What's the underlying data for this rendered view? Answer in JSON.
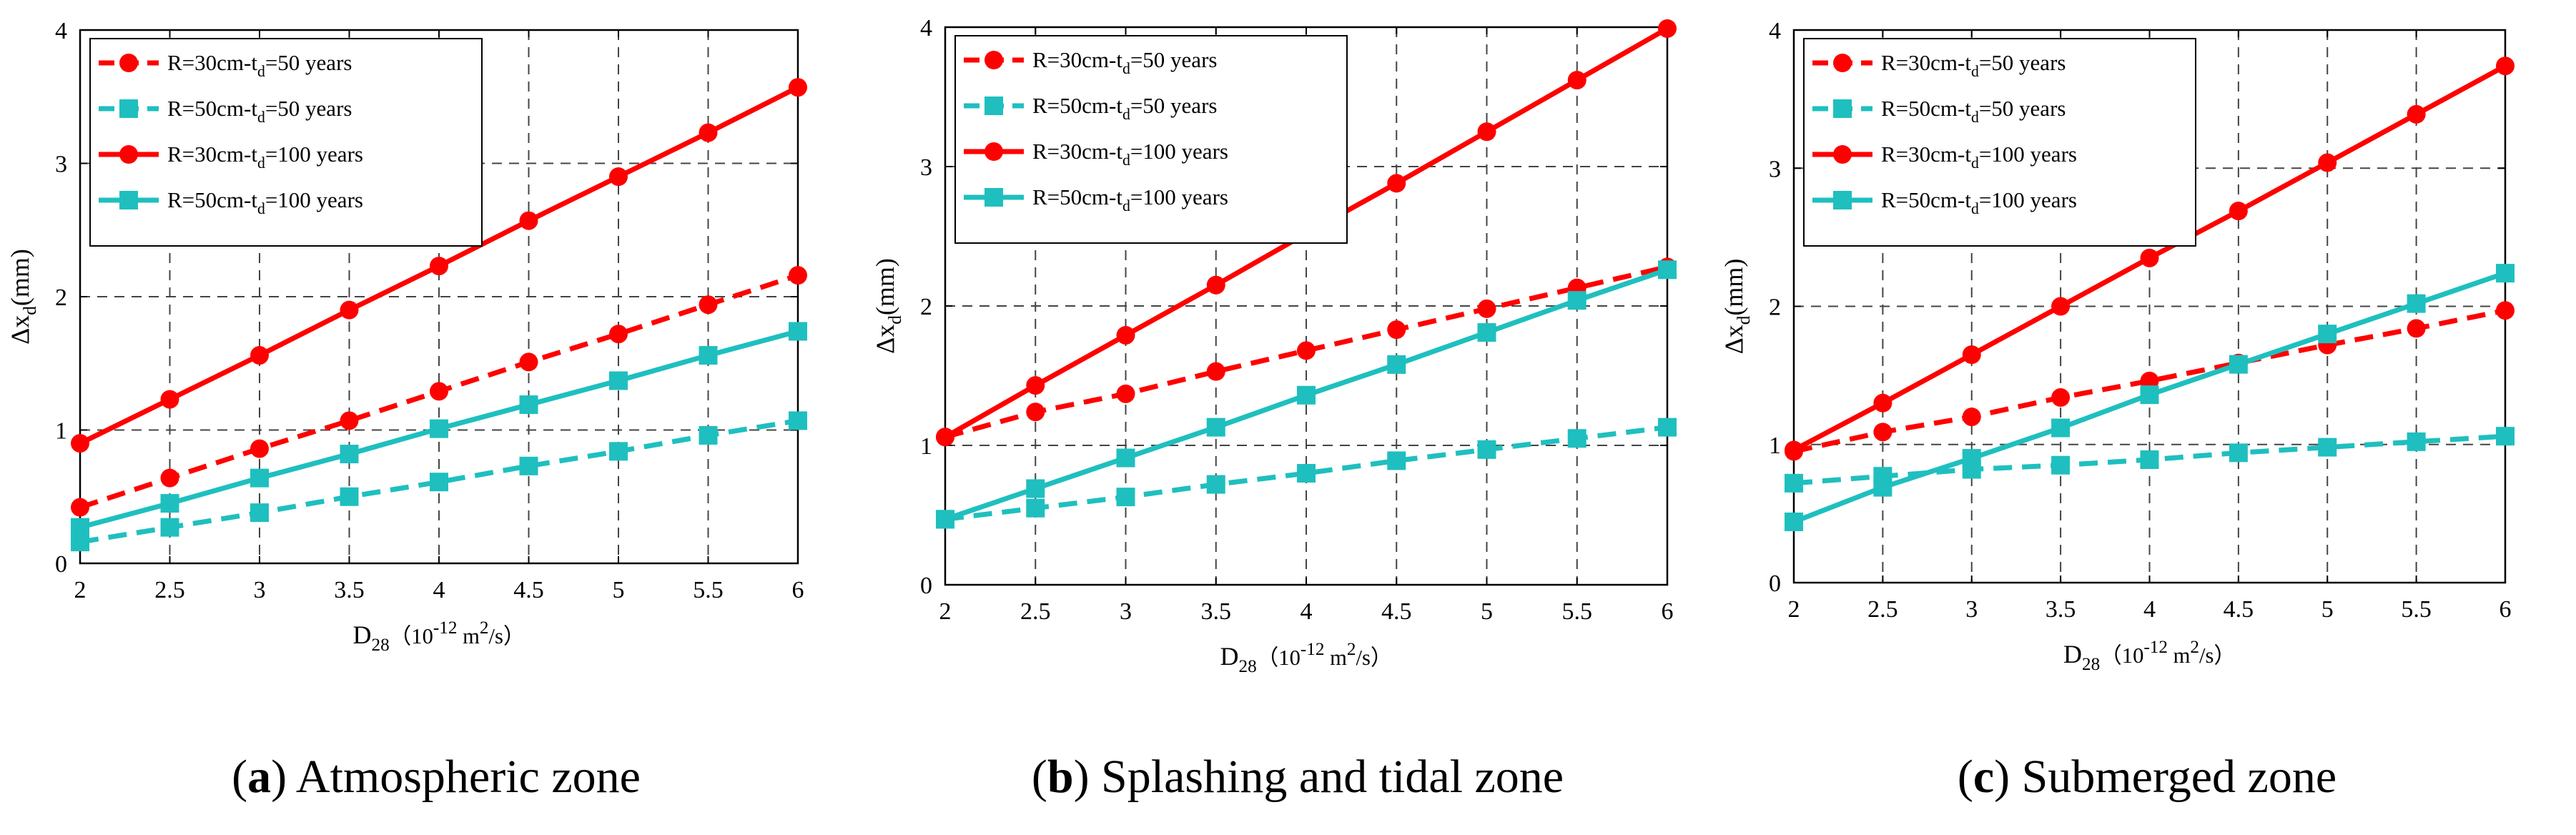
{
  "figure": {
    "colors": {
      "red": "#ff0000",
      "cyan": "#1fbfbf",
      "grid": "#444444",
      "axis": "#000000"
    }
  },
  "chart_data": [
    {
      "type": "line",
      "caption_label": "a",
      "caption_text": "Atmospheric zone",
      "xlabel": {
        "main": "D",
        "sub": "28",
        "unit_open": "（10",
        "unit_exp": "-12",
        "unit_mid": " m",
        "unit_sq": "2",
        "unit_close": "/s）"
      },
      "ylabel": {
        "main": "Δx",
        "sub": "d",
        "unit": "(mm)"
      },
      "xlim": [
        2,
        6
      ],
      "ylim": [
        0,
        4
      ],
      "x_ticks": [
        "2",
        "2.5",
        "3",
        "3.5",
        "4",
        "4.5",
        "5",
        "5.5",
        "6"
      ],
      "y_ticks": [
        "0",
        "1",
        "2",
        "3",
        "4"
      ],
      "grid": true,
      "legend_position": "top-left",
      "x": [
        2,
        2.5,
        3,
        3.5,
        4,
        4.5,
        5,
        5.5,
        6
      ],
      "series": [
        {
          "name": "R=30cm-td=50 years",
          "label_pre": "R=30cm-t",
          "label_sub": "d",
          "label_post": "=50 years",
          "color": "#ff0000",
          "marker": "circle",
          "dash": true,
          "values": [
            0.42,
            0.64,
            0.86,
            1.07,
            1.29,
            1.51,
            1.72,
            1.94,
            2.16
          ]
        },
        {
          "name": "R=50cm-td=50 years",
          "label_pre": "R=50cm-t",
          "label_sub": "d",
          "label_post": "=50 years",
          "color": "#1fbfbf",
          "marker": "square",
          "dash": true,
          "values": [
            0.16,
            0.27,
            0.38,
            0.5,
            0.61,
            0.73,
            0.84,
            0.96,
            1.07
          ]
        },
        {
          "name": "R=30cm-td=100 years",
          "label_pre": "R=30cm-t",
          "label_sub": "d",
          "label_post": "=100 years",
          "color": "#ff0000",
          "marker": "circle",
          "dash": false,
          "values": [
            0.9,
            1.23,
            1.56,
            1.9,
            2.23,
            2.57,
            2.9,
            3.23,
            3.57
          ]
        },
        {
          "name": "R=50cm-td=100 years",
          "label_pre": "R=50cm-t",
          "label_sub": "d",
          "label_post": "=100 years",
          "color": "#1fbfbf",
          "marker": "square",
          "dash": false,
          "values": [
            0.27,
            0.45,
            0.64,
            0.82,
            1.01,
            1.19,
            1.37,
            1.56,
            1.74
          ]
        }
      ]
    },
    {
      "type": "line",
      "caption_label": "b",
      "caption_text": "Splashing and tidal zone",
      "xlabel": {
        "main": "D",
        "sub": "28",
        "unit_open": "（10",
        "unit_exp": "-12",
        "unit_mid": " m",
        "unit_sq": "2",
        "unit_close": "/s）"
      },
      "ylabel": {
        "main": "Δx",
        "sub": "d",
        "unit": "(mm)"
      },
      "xlim": [
        2,
        6
      ],
      "ylim": [
        0,
        4
      ],
      "x_ticks": [
        "2",
        "2.5",
        "3",
        "3.5",
        "4",
        "4.5",
        "5",
        "5.5",
        "6"
      ],
      "y_ticks": [
        "0",
        "1",
        "2",
        "3",
        "4"
      ],
      "grid": true,
      "legend_position": "top-left",
      "x": [
        2,
        2.5,
        3,
        3.5,
        4,
        4.5,
        5,
        5.5,
        6
      ],
      "series": [
        {
          "name": "R=30cm-td=50 years",
          "label_pre": "R=30cm-t",
          "label_sub": "d",
          "label_post": "=50 years",
          "color": "#ff0000",
          "marker": "circle",
          "dash": true,
          "values": [
            1.06,
            1.24,
            1.37,
            1.53,
            1.68,
            1.83,
            1.98,
            2.13,
            2.28
          ]
        },
        {
          "name": "R=50cm-td=50 years",
          "label_pre": "R=50cm-t",
          "label_sub": "d",
          "label_post": "=50 years",
          "color": "#1fbfbf",
          "marker": "square",
          "dash": true,
          "values": [
            0.47,
            0.55,
            0.63,
            0.72,
            0.8,
            0.89,
            0.97,
            1.05,
            1.13
          ]
        },
        {
          "name": "R=30cm-td=100 years",
          "label_pre": "R=30cm-t",
          "label_sub": "d",
          "label_post": "=100 years",
          "color": "#ff0000",
          "marker": "circle",
          "dash": false,
          "values": [
            1.06,
            1.43,
            1.79,
            2.15,
            2.52,
            2.88,
            3.25,
            3.62,
            3.99
          ]
        },
        {
          "name": "R=50cm-td=100 years",
          "label_pre": "R=50cm-t",
          "label_sub": "d",
          "label_post": "=100 years",
          "color": "#1fbfbf",
          "marker": "square",
          "dash": false,
          "values": [
            0.47,
            0.69,
            0.91,
            1.13,
            1.36,
            1.58,
            1.81,
            2.04,
            2.26
          ]
        }
      ]
    },
    {
      "type": "line",
      "caption_label": "c",
      "caption_text": "Submerged zone",
      "xlabel": {
        "main": "D",
        "sub": "28",
        "unit_open": "（10",
        "unit_exp": "-12",
        "unit_mid": "  m",
        "unit_sq": "2",
        "unit_close": "/s）"
      },
      "ylabel": {
        "main": "Δx",
        "sub": "d",
        "unit": "(mm)"
      },
      "xlim": [
        2,
        6
      ],
      "ylim": [
        0,
        4
      ],
      "x_ticks": [
        "2",
        "2.5",
        "3",
        "3.5",
        "4",
        "4.5",
        "5",
        "5.5",
        "6"
      ],
      "y_ticks": [
        "0",
        "1",
        "2",
        "3",
        "4"
      ],
      "grid": true,
      "legend_position": "top-left",
      "x": [
        2,
        2.5,
        3,
        3.5,
        4,
        4.5,
        5,
        5.5,
        6
      ],
      "series": [
        {
          "name": "R=30cm-td=50 years",
          "label_pre": "R=30cm-t",
          "label_sub": "d",
          "label_post": "=50 years",
          "color": "#ff0000",
          "marker": "circle",
          "dash": true,
          "values": [
            0.95,
            1.09,
            1.2,
            1.34,
            1.46,
            1.59,
            1.72,
            1.84,
            1.97
          ]
        },
        {
          "name": "R=50cm-td=50 years",
          "label_pre": "R=50cm-t",
          "label_sub": "d",
          "label_post": "=50 years",
          "color": "#1fbfbf",
          "marker": "square",
          "dash": true,
          "values": [
            0.72,
            0.77,
            0.82,
            0.85,
            0.89,
            0.94,
            0.98,
            1.02,
            1.06
          ]
        },
        {
          "name": "R=30cm-td=100 years",
          "label_pre": "R=30cm-t",
          "label_sub": "d",
          "label_post": "=100 years",
          "color": "#ff0000",
          "marker": "circle",
          "dash": false,
          "values": [
            0.96,
            1.3,
            1.65,
            2.0,
            2.35,
            2.69,
            3.04,
            3.39,
            3.74
          ]
        },
        {
          "name": "R=50cm-td=100 years",
          "label_pre": "R=50cm-t",
          "label_sub": "d",
          "label_post": "=100 years",
          "color": "#1fbfbf",
          "marker": "square",
          "dash": false,
          "values": [
            0.44,
            0.69,
            0.9,
            1.12,
            1.36,
            1.58,
            1.8,
            2.02,
            2.24
          ]
        }
      ]
    }
  ]
}
